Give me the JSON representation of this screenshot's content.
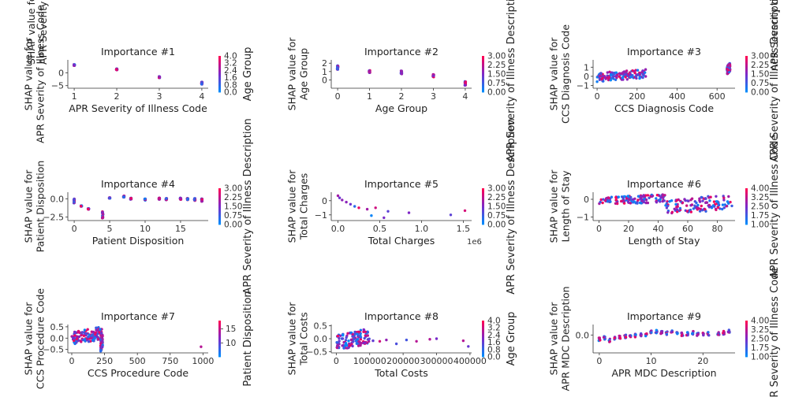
{
  "chart_data": [
    {
      "type": "scatter",
      "title": "Importance #1",
      "xlabel": "APR Severity of Illness Code",
      "ylabel": "SHAP value for\nAPR Severity of Illness Code",
      "xlim": [
        0.85,
        4.15
      ],
      "ylim": [
        -6,
        5
      ],
      "xticks": [
        1,
        2,
        3,
        4
      ],
      "xtick_labels": [
        "1",
        "2",
        "3",
        "4"
      ],
      "yticks": [
        -5,
        0
      ],
      "ytick_labels": [
        "−5",
        "0"
      ],
      "colorbar": {
        "label": "Age Group",
        "ticks": [
          "4.0",
          "3.2",
          "2.4",
          "1.6",
          "0.8",
          "0.0"
        ],
        "vmin": 0,
        "vmax": 4
      },
      "top_label": "SHAP value for\nAPR Severity of Illness Code",
      "clusters": [
        {
          "x": 1,
          "y": 3.0,
          "spread_y": 0.6
        },
        {
          "x": 2,
          "y": 1.3,
          "spread_y": 0.5
        },
        {
          "x": 3,
          "y": -1.7,
          "spread_y": 0.5
        },
        {
          "x": 4,
          "y": -4.0,
          "spread_y": 1.0
        }
      ]
    },
    {
      "type": "scatter",
      "title": "Importance #2",
      "xlabel": "Age Group",
      "ylabel": "SHAP value for\nAge Group",
      "xlim": [
        -0.2,
        4.2
      ],
      "ylim": [
        -1.0,
        2.4
      ],
      "xticks": [
        0,
        1,
        2,
        3,
        4
      ],
      "xtick_labels": [
        "0",
        "1",
        "2",
        "3",
        "4"
      ],
      "yticks": [
        0,
        1,
        2
      ],
      "ytick_labels": [
        "0",
        "1",
        "2"
      ],
      "colorbar": {
        "label": "APR Severity of Illness Description",
        "ticks": [
          "3.00",
          "2.25",
          "1.50",
          "0.75",
          "0.00"
        ],
        "vmin": 0,
        "vmax": 3
      },
      "clusters": [
        {
          "x": 0,
          "y": 1.5,
          "spread_y": 0.5
        },
        {
          "x": 1,
          "y": 1.0,
          "spread_y": 0.3
        },
        {
          "x": 2,
          "y": 0.9,
          "spread_y": 0.4
        },
        {
          "x": 3,
          "y": 0.5,
          "spread_y": 0.3
        },
        {
          "x": 4,
          "y": -0.4,
          "spread_y": 0.5
        }
      ]
    },
    {
      "type": "scatter",
      "title": "Importance #3",
      "xlabel": "CCS Diagnosis Code",
      "ylabel": "SHAP value for\nCCS Diagnosis Code",
      "xlim": [
        -20,
        690
      ],
      "ylim": [
        -1.3,
        1.8
      ],
      "xticks": [
        0,
        200,
        400,
        600
      ],
      "xtick_labels": [
        "0",
        "200",
        "400",
        "600"
      ],
      "yticks": [
        -1,
        0,
        1
      ],
      "ytick_labels": [
        "−1",
        "0",
        "1"
      ],
      "colorbar": {
        "label": "APR Severity of Illness Description",
        "ticks": [
          "3.00",
          "2.25",
          "1.50",
          "0.75",
          "0.00"
        ],
        "vmin": 0,
        "vmax": 3
      },
      "bands": [
        {
          "x0": 0,
          "x1": 250,
          "y0": -0.6,
          "y1": 0.8
        },
        {
          "x0": 650,
          "x1": 665,
          "y0": 0.2,
          "y1": 1.5
        }
      ]
    },
    {
      "type": "scatter",
      "title": "Importance #4",
      "xlabel": "Patient Disposition",
      "ylabel": "SHAP value for\nPatient Disposition",
      "xlim": [
        -0.9,
        18.9
      ],
      "ylim": [
        -3.0,
        0.9
      ],
      "xticks": [
        0,
        5,
        10,
        15
      ],
      "xtick_labels": [
        "0",
        "5",
        "10",
        "15"
      ],
      "yticks": [
        -2.5,
        0.0
      ],
      "ytick_labels": [
        "−2.5",
        "0.0"
      ],
      "colorbar": {
        "label": "APR Severity of Illness Description",
        "ticks": [
          "3.00",
          "2.25",
          "1.50",
          "0.75",
          "0.00"
        ],
        "vmin": 0,
        "vmax": 3
      },
      "clusters": [
        {
          "x": 0,
          "y": -0.3,
          "spread_y": 0.6
        },
        {
          "x": 1,
          "y": -1.0,
          "spread_y": 0.1
        },
        {
          "x": 2,
          "y": -1.4,
          "spread_y": 0.1
        },
        {
          "x": 4,
          "y": -2.2,
          "spread_y": 0.9
        },
        {
          "x": 5,
          "y": 0.1,
          "spread_y": 0.1
        },
        {
          "x": 7,
          "y": 0.3,
          "spread_y": 0.2
        },
        {
          "x": 8,
          "y": 0.0,
          "spread_y": 0.2
        },
        {
          "x": 10,
          "y": -0.1,
          "spread_y": 0.2
        },
        {
          "x": 12,
          "y": 0.0,
          "spread_y": 0.2
        },
        {
          "x": 13,
          "y": -0.05,
          "spread_y": 0.2
        },
        {
          "x": 15,
          "y": 0.0,
          "spread_y": 0.2
        },
        {
          "x": 16,
          "y": -0.05,
          "spread_y": 0.2
        },
        {
          "x": 17,
          "y": -0.1,
          "spread_y": 0.3
        },
        {
          "x": 18,
          "y": -0.2,
          "spread_y": 0.4
        }
      ]
    },
    {
      "type": "scatter",
      "title": "Importance #5",
      "xlabel": "Total Charges",
      "ylabel": "SHAP value for\nTotal Charges",
      "offset_text": "1e6",
      "xlim": [
        -0.08,
        1.6
      ],
      "ylim": [
        -1.4,
        0.6
      ],
      "xticks": [
        0.0,
        0.5,
        1.0,
        1.5
      ],
      "xtick_labels": [
        "0.0",
        "0.5",
        "1.0",
        "1.5"
      ],
      "yticks": [
        -1,
        0
      ],
      "ytick_labels": [
        "−1",
        "0"
      ],
      "colorbar": {
        "label": "APR Severity of Illness Description",
        "ticks": [
          "3.00",
          "2.25",
          "1.50",
          "0.75",
          "0.00"
        ],
        "vmin": 0,
        "vmax": 3
      },
      "points": [
        [
          0.0,
          0.35
        ],
        [
          0.02,
          0.2
        ],
        [
          0.05,
          0.05
        ],
        [
          0.1,
          -0.1
        ],
        [
          0.15,
          -0.25
        ],
        [
          0.2,
          -0.4
        ],
        [
          0.25,
          -0.5
        ],
        [
          0.35,
          -0.6
        ],
        [
          0.4,
          -1.05
        ],
        [
          0.45,
          -0.5
        ],
        [
          0.55,
          -1.2
        ],
        [
          0.6,
          -0.75
        ],
        [
          0.85,
          -0.85
        ],
        [
          1.35,
          -1.0
        ],
        [
          1.52,
          -0.7
        ]
      ]
    },
    {
      "type": "scatter",
      "title": "Importance #6",
      "xlabel": "Length of Stay",
      "ylabel": "SHAP value for\nLength of Stay",
      "xlim": [
        -4,
        92
      ],
      "ylim": [
        -1.2,
        0.4
      ],
      "xticks": [
        0,
        20,
        40,
        60,
        80
      ],
      "xtick_labels": [
        "0",
        "20",
        "40",
        "60",
        "80"
      ],
      "yticks": [
        -1,
        0
      ],
      "ytick_labels": [
        "−1",
        "0"
      ],
      "colorbar": {
        "label": "APR Severity of Illness Code",
        "ticks": [
          "4.00",
          "3.25",
          "2.50",
          "1.75",
          "1.00"
        ],
        "vmin": 1,
        "vmax": 4
      },
      "top_label": "APR Severity of Illness Code",
      "bands": [
        {
          "x0": 0,
          "x1": 45,
          "y0": -0.35,
          "y1": 0.3
        },
        {
          "x0": 45,
          "x1": 90,
          "y0": -0.9,
          "y1": 0.3
        }
      ]
    },
    {
      "type": "scatter",
      "title": "Importance #7",
      "xlabel": "CCS Procedure Code",
      "ylabel": "SHAP value for\nCCS Procedure Code",
      "xlim": [
        -30,
        1040
      ],
      "ylim": [
        -0.65,
        0.6
      ],
      "xticks": [
        0,
        250,
        500,
        750,
        1000
      ],
      "xtick_labels": [
        "0",
        "250",
        "500",
        "750",
        "1000"
      ],
      "yticks": [
        -0.5,
        0.0,
        0.5
      ],
      "ytick_labels": [
        "−0.5",
        "0.0",
        "0.5"
      ],
      "colorbar": {
        "label": "Patient Disposition",
        "ticks": [
          "15",
          "10"
        ],
        "tick_values": [
          15,
          10
        ],
        "vmin": 5,
        "vmax": 18
      },
      "bands": [
        {
          "x0": 0,
          "x1": 230,
          "y0": -0.3,
          "y1": 0.5
        },
        {
          "x0": 220,
          "x1": 235,
          "y0": -0.6,
          "y1": 0.2
        }
      ],
      "points": [
        [
          985,
          -0.38
        ]
      ]
    },
    {
      "type": "scatter",
      "title": "Importance #8",
      "xlabel": "Total Costs",
      "ylabel": "SHAP value for\nTotal Costs",
      "xlim": [
        -15000,
        405000
      ],
      "ylim": [
        -0.55,
        0.55
      ],
      "xticks": [
        0,
        100000,
        200000,
        300000,
        400000
      ],
      "xtick_labels": [
        "0",
        "100000",
        "200000",
        "300000",
        "400000"
      ],
      "yticks": [
        -0.5,
        0.0,
        0.5
      ],
      "ytick_labels": [
        "−0.5",
        "0.0",
        "0.5"
      ],
      "colorbar": {
        "label": "Age Group",
        "ticks": [
          "4.0",
          "3.2",
          "2.4",
          "1.6",
          "0.8",
          "0.0"
        ],
        "vmin": 0,
        "vmax": 4
      },
      "bands": [
        {
          "x0": 0,
          "x1": 100000,
          "y0": -0.45,
          "y1": 0.4
        }
      ],
      "points": [
        [
          110000,
          -0.08
        ],
        [
          130000,
          -0.1
        ],
        [
          150000,
          -0.05
        ],
        [
          180000,
          -0.2
        ],
        [
          210000,
          -0.05
        ],
        [
          240000,
          -0.1
        ],
        [
          280000,
          -0.02
        ],
        [
          300000,
          0.0
        ],
        [
          380000,
          -0.08
        ],
        [
          395000,
          -0.3
        ]
      ]
    },
    {
      "type": "scatter",
      "title": "Importance #9",
      "xlabel": "APR MDC Description",
      "ylabel": "SHAP value for\nAPR MDC Description",
      "xlim": [
        -1.2,
        26.2
      ],
      "ylim": [
        -0.65,
        0.38
      ],
      "xticks": [
        0,
        10,
        20
      ],
      "xtick_labels": [
        "0",
        "10",
        "20"
      ],
      "yticks": [
        0.0
      ],
      "ytick_labels": [
        "0.0"
      ],
      "colorbar": {
        "label": "APR Severity of Illness Code",
        "ticks": [
          "4.00",
          "3.25",
          "2.50",
          "1.75",
          "1.00"
        ],
        "vmin": 1,
        "vmax": 4
      },
      "trend": [
        [
          0,
          -0.15
        ],
        [
          1,
          -0.1
        ],
        [
          2,
          -0.2
        ],
        [
          3,
          -0.12
        ],
        [
          4,
          -0.08
        ],
        [
          5,
          -0.05
        ],
        [
          6,
          -0.03
        ],
        [
          7,
          -0.02
        ],
        [
          8,
          0.0
        ],
        [
          9,
          0.02
        ],
        [
          10,
          0.1
        ],
        [
          11,
          0.12
        ],
        [
          12,
          0.08
        ],
        [
          13,
          0.06
        ],
        [
          14,
          0.1
        ],
        [
          15,
          0.06
        ],
        [
          16,
          0.03
        ],
        [
          17,
          0.05
        ],
        [
          18,
          0.08
        ],
        [
          19,
          0.02
        ],
        [
          20,
          0.05
        ],
        [
          21,
          0.04
        ],
        [
          23,
          0.05
        ],
        [
          24,
          0.08
        ],
        [
          25,
          0.15
        ]
      ]
    }
  ]
}
